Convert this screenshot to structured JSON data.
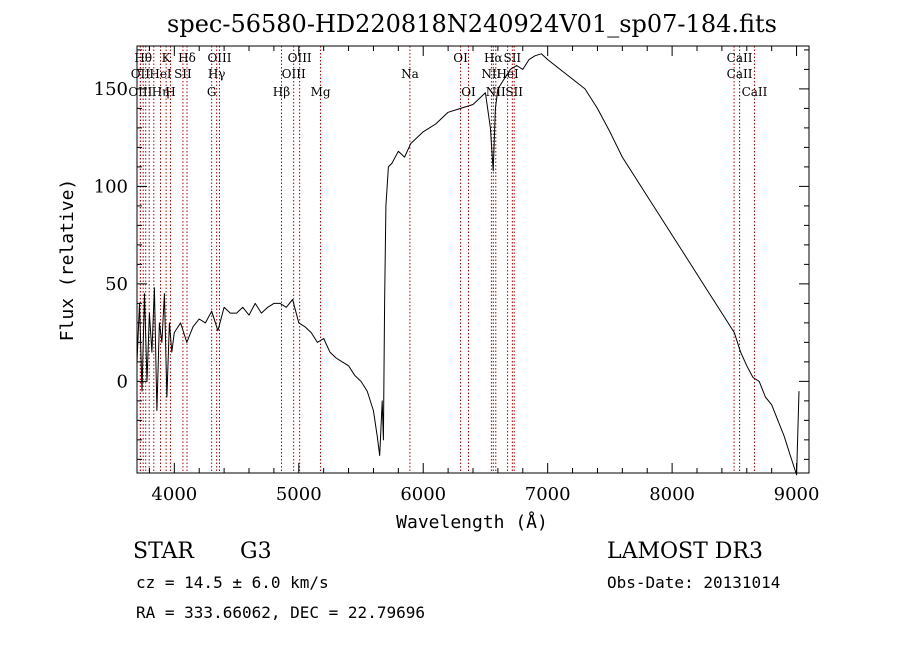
{
  "chart_data": {
    "type": "line",
    "title": "spec-56580-HD220818N240924V01_sp07-184.fits",
    "xlabel": "Wavelength (Å)",
    "ylabel": "Flux (relative)",
    "xlim": [
      3700,
      9100
    ],
    "ylim": [
      -47,
      172
    ],
    "x_ticks": [
      4000,
      5000,
      6000,
      7000,
      8000,
      9000
    ],
    "x_tick_labels": [
      "4000",
      "5000",
      "6000",
      "7000",
      "8000",
      "9000"
    ],
    "y_ticks": [
      0,
      50,
      100,
      150
    ],
    "y_tick_labels": [
      "0",
      "50",
      "100",
      "150"
    ],
    "grid": false,
    "line_color": "#000000",
    "marker_color": "#aa0000",
    "spectrum": {
      "x": [
        3700,
        3720,
        3740,
        3760,
        3780,
        3800,
        3820,
        3840,
        3860,
        3880,
        3900,
        3920,
        3940,
        3960,
        3980,
        4000,
        4050,
        4100,
        4150,
        4200,
        4250,
        4300,
        4350,
        4400,
        4450,
        4500,
        4550,
        4600,
        4650,
        4700,
        4750,
        4800,
        4850,
        4900,
        4950,
        5000,
        5050,
        5100,
        5150,
        5200,
        5250,
        5300,
        5350,
        5400,
        5450,
        5500,
        5550,
        5600,
        5630,
        5650,
        5670,
        5680,
        5690,
        5700,
        5720,
        5750,
        5800,
        5850,
        5900,
        5950,
        6000,
        6100,
        6200,
        6300,
        6400,
        6450,
        6500,
        6540,
        6562,
        6580,
        6600,
        6650,
        6700,
        6750,
        6800,
        6850,
        6900,
        6950,
        7000,
        7100,
        7200,
        7300,
        7400,
        7500,
        7600,
        7700,
        7800,
        7900,
        8000,
        8100,
        8200,
        8300,
        8400,
        8500,
        8550,
        8600,
        8650,
        8700,
        8750,
        8800,
        8850,
        8900,
        8950,
        9000,
        9020
      ],
      "y": [
        10,
        40,
        -5,
        45,
        0,
        35,
        15,
        48,
        -15,
        30,
        20,
        45,
        -8,
        30,
        15,
        25,
        30,
        20,
        28,
        32,
        30,
        36,
        26,
        38,
        35,
        35,
        38,
        34,
        40,
        35,
        38,
        40,
        40,
        38,
        42,
        30,
        28,
        25,
        20,
        22,
        15,
        12,
        10,
        8,
        3,
        0,
        -5,
        -15,
        -28,
        -38,
        -10,
        -30,
        40,
        90,
        110,
        112,
        118,
        115,
        122,
        125,
        128,
        132,
        138,
        140,
        142,
        145,
        148,
        130,
        108,
        140,
        150,
        155,
        160,
        162,
        160,
        165,
        167,
        168,
        165,
        160,
        155,
        150,
        140,
        128,
        115,
        105,
        95,
        85,
        75,
        65,
        55,
        45,
        35,
        25,
        15,
        8,
        2,
        0,
        -8,
        -12,
        -20,
        -28,
        -38,
        -48,
        -5
      ]
    },
    "lines": [
      {
        "w": 3750,
        "label": "Hθ",
        "row": 1
      },
      {
        "w": 3727,
        "label": "OII",
        "row": 2
      },
      {
        "w": 3727,
        "label": "OIII",
        "row": 3
      },
      {
        "w": 3770,
        "label": "",
        "row": 0
      },
      {
        "w": 3798,
        "label": "",
        "row": 0
      },
      {
        "w": 3835,
        "label": "",
        "row": 0
      },
      {
        "w": 3889,
        "label": "HeI",
        "row": 2
      },
      {
        "w": 3889,
        "label": "Hη",
        "row": 3
      },
      {
        "w": 3934,
        "label": "K",
        "row": 1
      },
      {
        "w": 3969,
        "label": "H",
        "row": 3
      },
      {
        "w": 4069,
        "label": "SII",
        "row": 2
      },
      {
        "w": 4102,
        "label": "Hδ",
        "row": 1
      },
      {
        "w": 4300,
        "label": "G",
        "row": 3
      },
      {
        "w": 4340,
        "label": "Hγ",
        "row": 2
      },
      {
        "w": 4363,
        "label": "OIII",
        "row": 1
      },
      {
        "w": 4861,
        "label": "Hβ",
        "row": 3
      },
      {
        "w": 4959,
        "label": "OIII",
        "row": 2
      },
      {
        "w": 5007,
        "label": "OIII",
        "row": 1
      },
      {
        "w": 5175,
        "label": "Mg",
        "row": 3
      },
      {
        "w": 5893,
        "label": "Na",
        "row": 2
      },
      {
        "w": 6300,
        "label": "OI",
        "row": 1
      },
      {
        "w": 6364,
        "label": "OI",
        "row": 3
      },
      {
        "w": 6548,
        "label": "NII",
        "row": 2
      },
      {
        "w": 6563,
        "label": "Hα",
        "row": 1
      },
      {
        "w": 6583,
        "label": "NII",
        "row": 3
      },
      {
        "w": 6678,
        "label": "HeI",
        "row": 2
      },
      {
        "w": 6716,
        "label": "SII",
        "row": 1
      },
      {
        "w": 6731,
        "label": "SII",
        "row": 3
      },
      {
        "w": 8498,
        "label": "",
        "row": 0
      },
      {
        "w": 8542,
        "label": "CaII",
        "row": 1
      },
      {
        "w": 8542,
        "label": "CaII",
        "row": 2
      },
      {
        "w": 8662,
        "label": "CaII",
        "row": 3
      }
    ]
  },
  "info": {
    "object_class": "STAR",
    "subclass": "G3",
    "cz": "cz = 14.5 ± 6.0 km/s",
    "coords": "RA = 333.66062, DEC =  22.79696",
    "survey": "LAMOST DR3",
    "obs_date": "Obs-Date: 20131014"
  }
}
